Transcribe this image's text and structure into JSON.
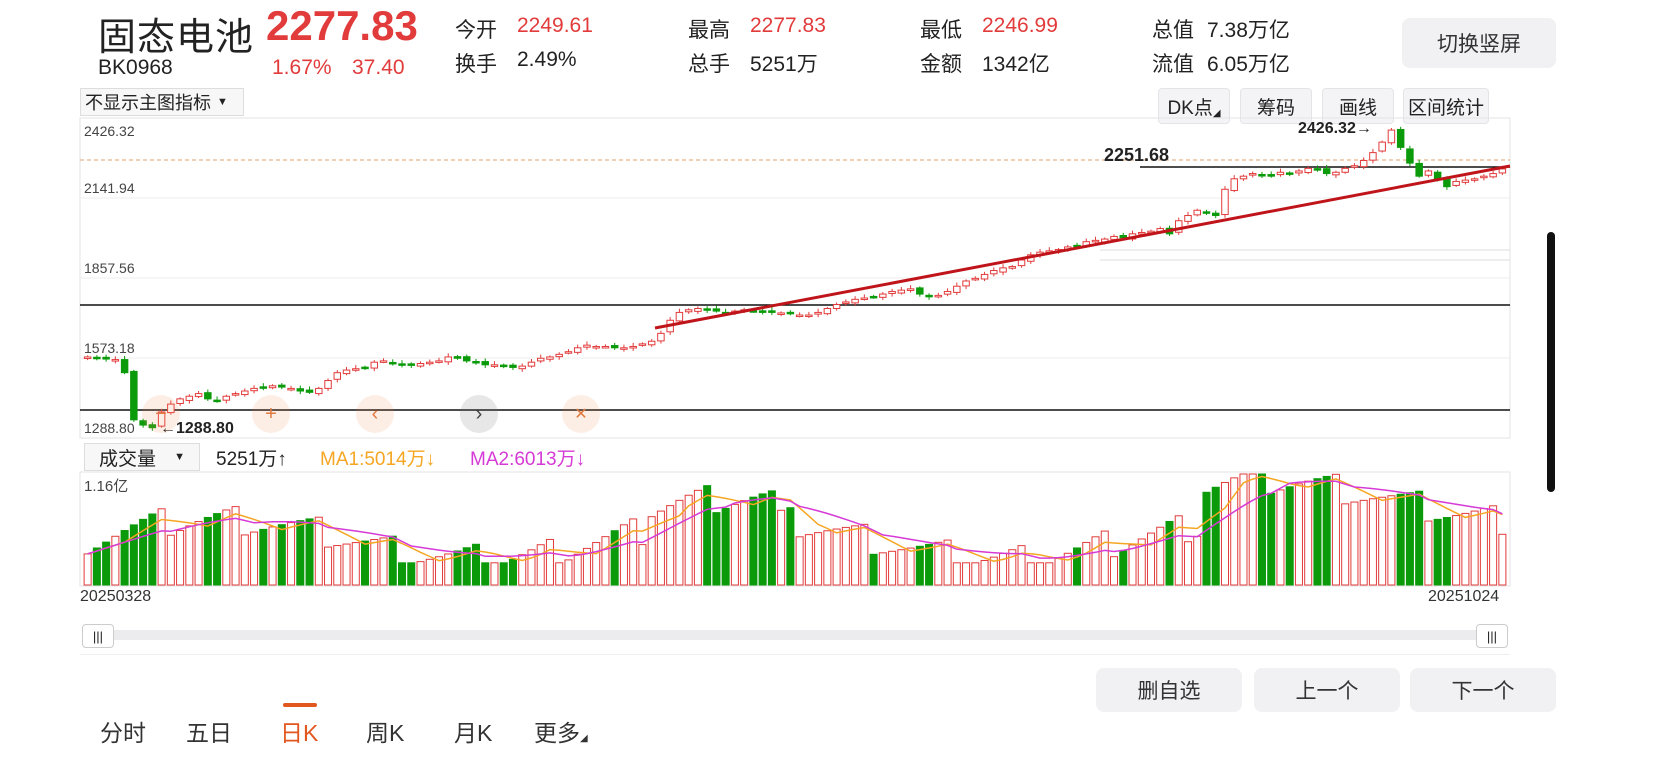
{
  "header": {
    "name": "固态电池",
    "code": "BK0968",
    "price": "2277.83",
    "change_pct": "1.67%",
    "change_amt": "37.40",
    "stats": [
      {
        "label": "今开",
        "value": "2249.61",
        "color": "#e23b3b"
      },
      {
        "label": "最高",
        "value": "2277.83",
        "color": "#e23b3b"
      },
      {
        "label": "最低",
        "value": "2246.99",
        "color": "#e23b3b"
      },
      {
        "label": "总值",
        "value": "7.38万亿",
        "color": "#222"
      },
      {
        "label": "换手",
        "value": "2.49%",
        "color": "#222"
      },
      {
        "label": "总手",
        "value": "5251万",
        "color": "#222"
      },
      {
        "label": "金额",
        "value": "1342亿",
        "color": "#222"
      },
      {
        "label": "流值",
        "value": "6.05万亿",
        "color": "#222"
      }
    ],
    "switch_button": "切换竖屏"
  },
  "toolbar": {
    "indicator_select": "不显示主图指标",
    "buttons": [
      "DK点",
      "筹码",
      "画线",
      "区间统计"
    ]
  },
  "main_chart": {
    "y_labels": [
      "2426.32",
      "2141.94",
      "1857.56",
      "1573.18",
      "1288.80"
    ],
    "high_annotation": "2426.32",
    "low_annotation": "1288.80",
    "line_annotation": "2251.68"
  },
  "volume": {
    "select": "成交量",
    "value": "5251万",
    "ma1": "MA1:5014万",
    "ma2": "MA2:6013万",
    "max_label": "1.16亿",
    "start_date": "20250328",
    "end_date": "20251024",
    "colors": {
      "up": "#e23b3b",
      "down": "#0a9a0a",
      "ma1": "#f5a623",
      "ma2": "#d63ad6"
    }
  },
  "bottom": {
    "tabs": [
      "分时",
      "五日",
      "日K",
      "周K",
      "月K",
      "更多"
    ],
    "active_tab": "日K",
    "actions": [
      "删自选",
      "上一个",
      "下一个"
    ]
  },
  "chart_data": {
    "type": "candlestick",
    "x_range": [
      "20250328",
      "20251024"
    ],
    "ylim": [
      1288.8,
      2426.32
    ],
    "y_ticks": [
      1288.8,
      1573.18,
      1857.56,
      2141.94,
      2426.32
    ],
    "close_series": [
      1560,
      1555,
      1552,
      1550,
      1500,
      1320,
      1300,
      1290,
      1350,
      1380,
      1400,
      1410,
      1420,
      1400,
      1395,
      1410,
      1420,
      1430,
      1440,
      1445,
      1450,
      1445,
      1440,
      1430,
      1425,
      1440,
      1470,
      1500,
      1510,
      1515,
      1520,
      1540,
      1545,
      1535,
      1530,
      1530,
      1535,
      1540,
      1545,
      1560,
      1555,
      1545,
      1540,
      1530,
      1530,
      1525,
      1520,
      1525,
      1540,
      1555,
      1560,
      1570,
      1580,
      1595,
      1605,
      1600,
      1600,
      1595,
      1595,
      1600,
      1610,
      1620,
      1650,
      1700,
      1730,
      1740,
      1745,
      1740,
      1735,
      1730,
      1735,
      1740,
      1735,
      1730,
      1730,
      1728,
      1725,
      1720,
      1720,
      1730,
      1745,
      1760,
      1770,
      1780,
      1785,
      1790,
      1800,
      1810,
      1815,
      1820,
      1800,
      1790,
      1795,
      1810,
      1830,
      1850,
      1860,
      1875,
      1890,
      1900,
      1905,
      1930,
      1950,
      1960,
      1965,
      1970,
      1980,
      1985,
      2000,
      2005,
      2010,
      2020,
      2015,
      2030,
      2035,
      2040,
      2050,
      2030,
      2080,
      2100,
      2120,
      2110,
      2100,
      2200,
      2240,
      2250,
      2260,
      2255,
      2250,
      2265,
      2260,
      2270,
      2280,
      2275,
      2260,
      2265,
      2280,
      2290,
      2310,
      2340,
      2380,
      2426,
      2360,
      2300,
      2250,
      2270,
      2240,
      2210,
      2230,
      2235,
      2240,
      2250,
      2260,
      2277.83
    ],
    "annotations": [
      {
        "text": "2426.32",
        "kind": "max"
      },
      {
        "text": "1288.80",
        "kind": "min"
      },
      {
        "text": "2251.68",
        "kind": "horizontal-line"
      }
    ]
  }
}
